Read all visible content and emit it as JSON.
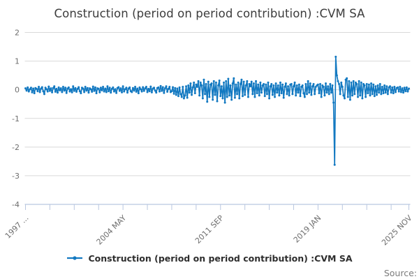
{
  "title": "Construction (period on period contribution) :CVM SA",
  "legend": {
    "label": "Construction (period on period contribution) :CVM SA"
  },
  "source_label": "Source:",
  "colors": {
    "line": "#1379c1",
    "grid": "#d9d9d9",
    "axis": "#b9c7e0",
    "tick_label": "#6e6e6e"
  },
  "chart_data": {
    "type": "line",
    "title": "Construction (period on period contribution) :CVM SA",
    "series_name": "Construction (period on period contribution) :CVM SA",
    "x_frequency": "monthly",
    "x_start": "1997 JAN",
    "x_end": "2025 NOV",
    "xlabel": "",
    "ylabel": "",
    "ylim": [
      -4,
      2
    ],
    "grid": true,
    "legend_position": "bottom",
    "yticks": [
      2,
      1,
      0,
      -1,
      -2,
      -3,
      -4
    ],
    "x_tick_labels": [
      {
        "label": "1997 ...",
        "month_index": 0
      },
      {
        "label": "2004 MAY",
        "month_index": 88
      },
      {
        "label": "2011 SEP",
        "month_index": 176
      },
      {
        "label": "2019 JAN",
        "month_index": 264
      },
      {
        "label": "2025 NOV",
        "month_index": 346
      }
    ],
    "x_minor_tick_months": [
      0,
      22,
      44,
      66,
      88,
      110,
      132,
      154,
      176,
      198,
      220,
      242,
      264,
      286,
      308,
      330,
      346
    ],
    "values": [
      0.05,
      -0.03,
      0.08,
      -0.06,
      0.02,
      0.07,
      -0.09,
      0.04,
      -0.12,
      0.06,
      0.03,
      -0.05,
      0.1,
      -0.08,
      0.04,
      0.09,
      -0.05,
      -0.15,
      0.07,
      0.02,
      -0.06,
      0.11,
      -0.04,
      0.05,
      -0.09,
      0.06,
      0.12,
      -0.07,
      0.03,
      -0.1,
      0.08,
      -0.02,
      0.05,
      -0.08,
      0.1,
      -0.03,
      0.07,
      -0.11,
      0.04,
      0.08,
      -0.06,
      0.02,
      -0.09,
      0.12,
      -0.04,
      0.06,
      -0.07,
      0.03,
      0.09,
      -0.05,
      -0.12,
      0.07,
      0.04,
      -0.08,
      0.1,
      -0.03,
      0.06,
      -0.1,
      0.05,
      0.02,
      -0.07,
      0.11,
      -0.04,
      0.08,
      -0.12,
      0.05,
      0.03,
      -0.09,
      0.07,
      -0.02,
      0.1,
      -0.06,
      0.04,
      -0.08,
      0.12,
      -0.05,
      0.07,
      -0.1,
      0.03,
      0.08,
      -0.06,
      0.02,
      -0.11,
      0.06,
      0.09,
      -0.04,
      0.05,
      -0.09,
      0.12,
      -0.06,
      0.02,
      0.07,
      -0.1,
      0.04,
      0.08,
      -0.05,
      -0.08,
      0.06,
      -0.03,
      0.1,
      -0.07,
      0.04,
      -0.12,
      0.08,
      0.02,
      -0.06,
      0.09,
      -0.04,
      0.05,
      0.1,
      -0.08,
      0.03,
      -0.05,
      0.11,
      -0.09,
      0.04,
      0.07,
      -0.03,
      -0.1,
      0.06,
      0.08,
      -0.06,
      0.13,
      -0.04,
      0.09,
      -0.11,
      0.05,
      0.12,
      -0.07,
      0.03,
      0.1,
      -0.08,
      -0.05,
      0.09,
      -0.14,
      0.06,
      -0.18,
      0.04,
      -0.22,
      0.08,
      -0.15,
      -0.25,
      0.1,
      -0.3,
      -0.2,
      0.12,
      -0.28,
      0.15,
      -0.1,
      0.22,
      -0.18,
      0.08,
      0.25,
      -0.12,
      0.18,
      0.1,
      0.3,
      -0.2,
      0.25,
      0.15,
      -0.3,
      0.35,
      -0.15,
      0.2,
      -0.42,
      0.28,
      -0.25,
      0.18,
      0.22,
      -0.35,
      0.3,
      -0.18,
      0.25,
      -0.4,
      0.15,
      0.32,
      -0.22,
      0.12,
      -0.3,
      0.25,
      -0.45,
      0.3,
      -0.25,
      0.38,
      -0.2,
      0.15,
      -0.35,
      0.22,
      0.4,
      -0.28,
      0.18,
      -0.15,
      0.25,
      -0.3,
      0.2,
      0.35,
      -0.22,
      0.28,
      -0.18,
      0.15,
      0.3,
      -0.25,
      0.2,
      0.12,
      0.28,
      -0.15,
      0.22,
      -0.25,
      0.3,
      -0.12,
      0.18,
      -0.2,
      0.25,
      -0.1,
      0.15,
      0.2,
      -0.22,
      0.18,
      -0.15,
      0.25,
      -0.3,
      0.12,
      0.2,
      -0.18,
      0.15,
      -0.25,
      0.22,
      -0.1,
      0.15,
      -0.2,
      0.25,
      -0.12,
      0.18,
      -0.28,
      0.1,
      0.22,
      -0.15,
      0.12,
      -0.2,
      0.18,
      0.2,
      -0.15,
      0.12,
      0.25,
      -0.2,
      0.15,
      -0.1,
      0.18,
      -0.22,
      0.1,
      0.15,
      -0.12,
      -0.25,
      0.2,
      -0.15,
      0.3,
      -0.1,
      0.22,
      -0.18,
      0.12,
      0.2,
      -0.15,
      0.1,
      0.15,
      0.18,
      -0.12,
      0.2,
      -0.25,
      0.15,
      0.1,
      -0.2,
      0.22,
      -0.1,
      0.12,
      -0.15,
      0.2,
      -0.1,
      0.15,
      -0.45,
      -2.62,
      1.15,
      0.5,
      0.3,
      0.2,
      -0.15,
      0.25,
      0.1,
      -0.2,
      -0.3,
      0.35,
      0.4,
      -0.25,
      0.3,
      -0.35,
      0.25,
      -0.2,
      0.3,
      -0.15,
      0.25,
      0.2,
      -0.25,
      0.3,
      -0.2,
      0.25,
      -0.3,
      0.2,
      0.15,
      -0.25,
      0.2,
      -0.12,
      0.18,
      -0.2,
      0.22,
      -0.15,
      0.18,
      -0.22,
      0.12,
      -0.18,
      0.15,
      -0.1,
      0.2,
      -0.15,
      0.1,
      -0.12,
      0.15,
      -0.1,
      0.12,
      -0.15,
      0.08,
      0.12,
      -0.1,
      0.08,
      -0.12,
      0.1,
      -0.08,
      0.06,
      0.08,
      -0.06,
      0.1,
      -0.08,
      0.05,
      -0.1,
      0.07,
      -0.05,
      0.08,
      -0.06,
      0.04
    ]
  }
}
